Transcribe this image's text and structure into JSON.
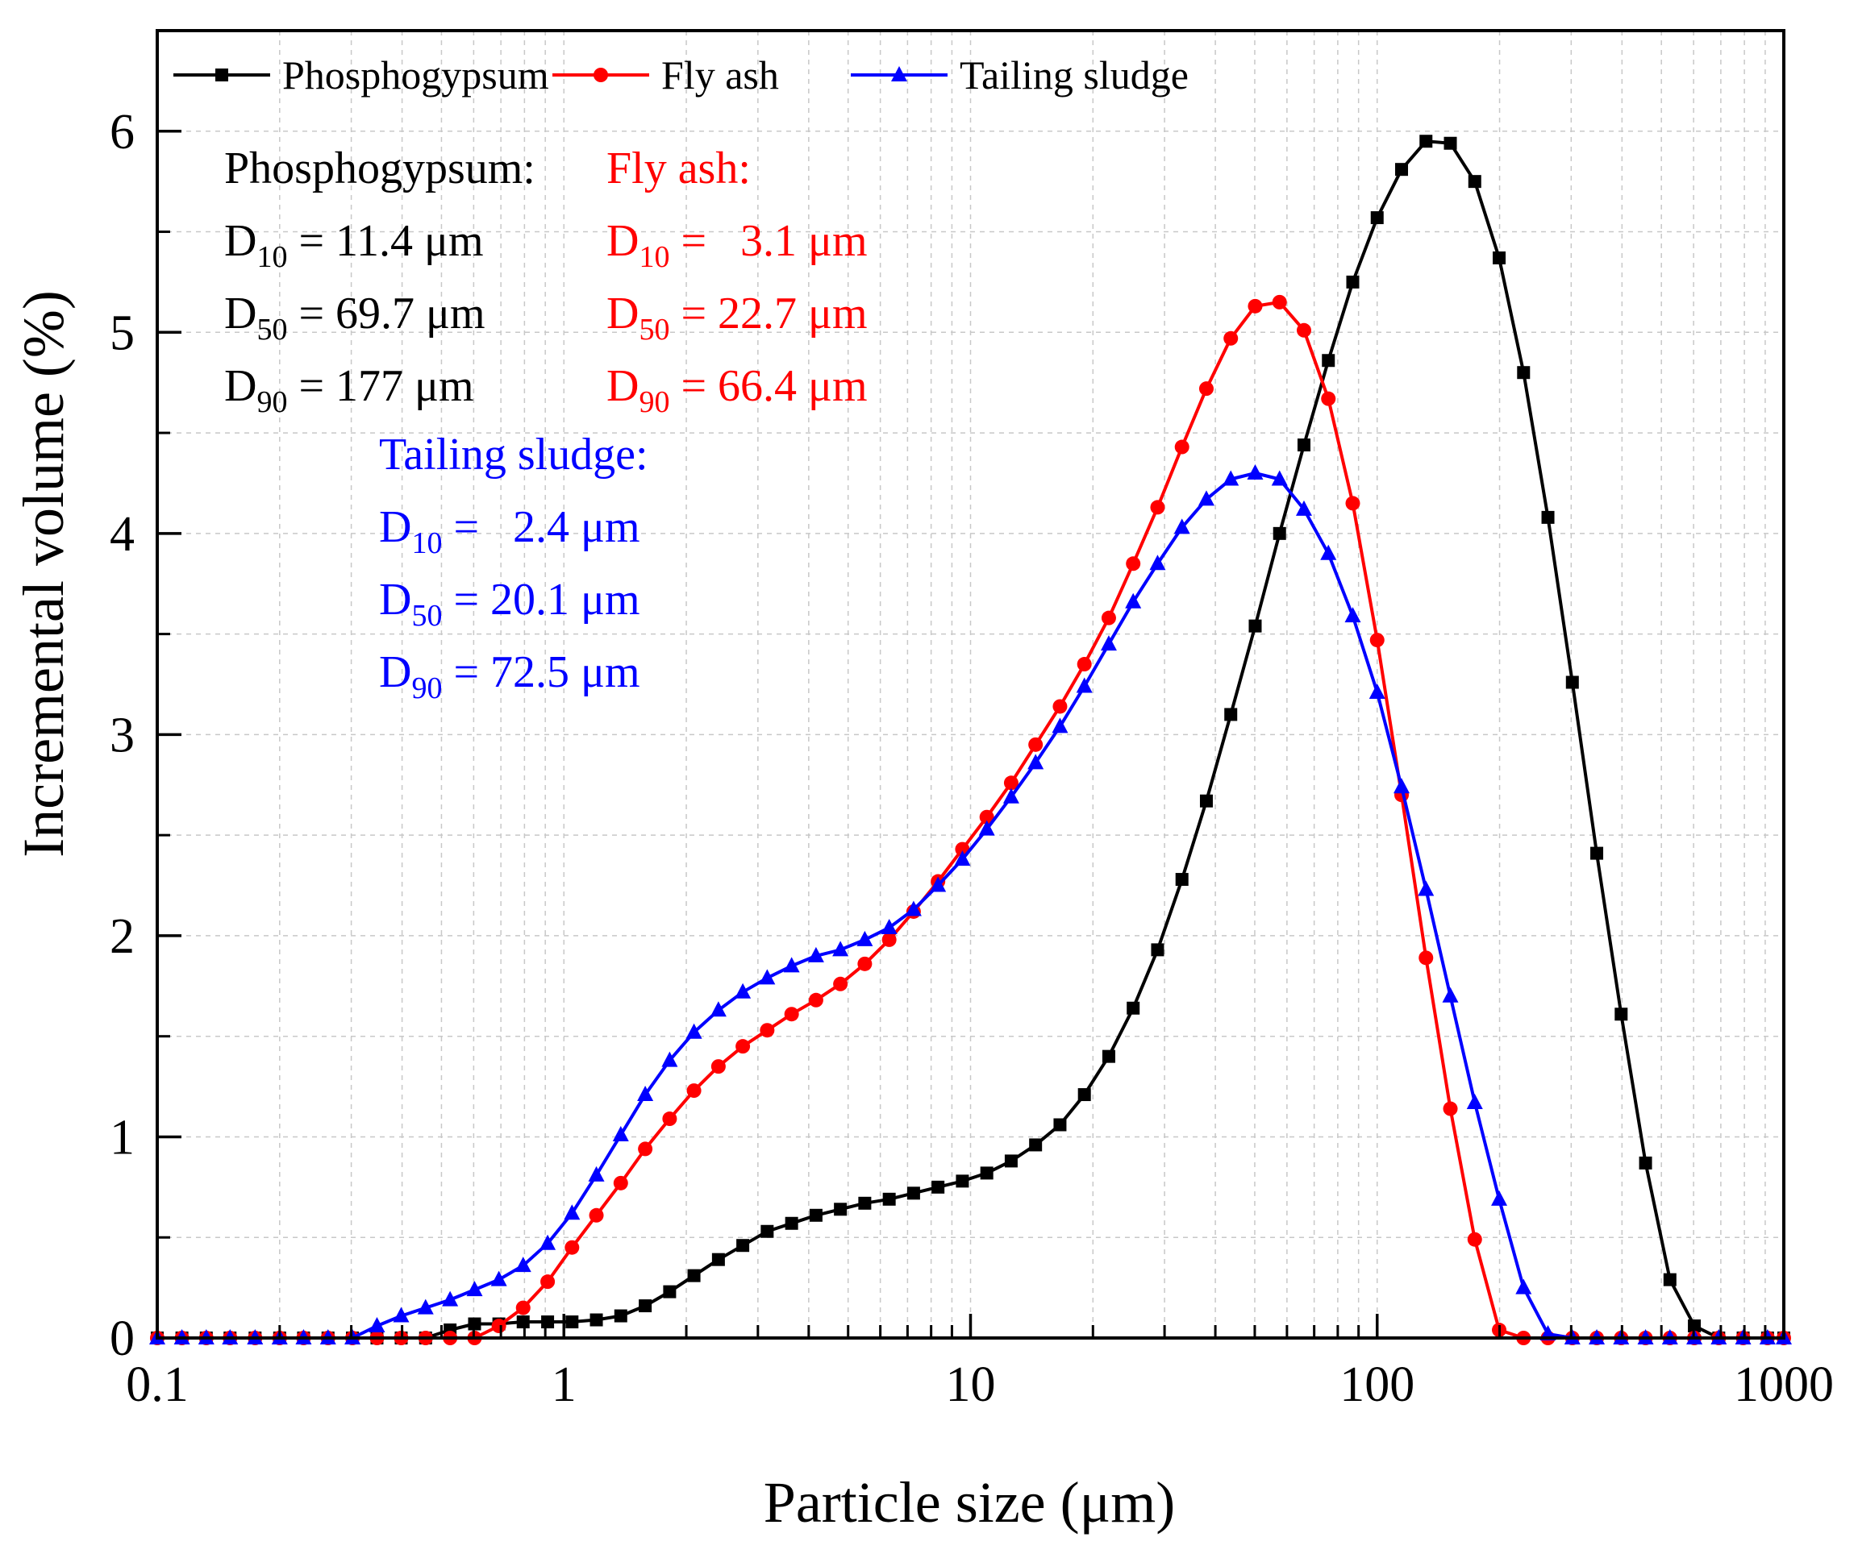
{
  "chart_data": {
    "type": "line",
    "xscale": "log",
    "xlabel": "Particle size (μm)",
    "ylabel": "Incremental volume (%)",
    "xlim": [
      0.1,
      1000
    ],
    "ylim": [
      0,
      6.5
    ],
    "xticks": [
      {
        "value": 0.1,
        "label": "0.1"
      },
      {
        "value": 1,
        "label": "1"
      },
      {
        "value": 10,
        "label": "10"
      },
      {
        "value": 100,
        "label": "100"
      },
      {
        "value": 1000,
        "label": "1000"
      }
    ],
    "yticks": [
      {
        "value": 0,
        "label": "0"
      },
      {
        "value": 1,
        "label": "1"
      },
      {
        "value": 2,
        "label": "2"
      },
      {
        "value": 3,
        "label": "3"
      },
      {
        "value": 4,
        "label": "4"
      },
      {
        "value": 5,
        "label": "5"
      },
      {
        "value": 6,
        "label": "6"
      }
    ],
    "grid": true,
    "legend_position": "top-left",
    "x": [
      0.1,
      0.115,
      0.132,
      0.151,
      0.174,
      0.2,
      0.229,
      0.263,
      0.302,
      0.347,
      0.398,
      0.457,
      0.525,
      0.603,
      0.692,
      0.794,
      0.912,
      1.047,
      1.202,
      1.38,
      1.585,
      1.82,
      2.089,
      2.399,
      2.754,
      3.162,
      3.631,
      4.169,
      4.786,
      5.495,
      6.31,
      7.244,
      8.318,
      9.55,
      10.965,
      12.589,
      14.454,
      16.596,
      19.055,
      21.878,
      25.119,
      28.84,
      33.113,
      38.019,
      43.652,
      50.119,
      57.544,
      66.069,
      75.858,
      87.096,
      100,
      114.82,
      131.83,
      151.36,
      173.78,
      199.53,
      229.09,
      263.03,
      302,
      346.74,
      398.11,
      457.09,
      524.81,
      602.56,
      691.83,
      794.33,
      912.01,
      1000
    ],
    "series": [
      {
        "name": "Phosphogypsum",
        "color": "#000000",
        "marker": "square",
        "values": [
          0,
          0,
          0,
          0,
          0,
          0,
          0,
          0,
          0,
          0,
          0,
          0,
          0.04,
          0.07,
          0.07,
          0.08,
          0.08,
          0.08,
          0.09,
          0.11,
          0.16,
          0.23,
          0.31,
          0.39,
          0.46,
          0.53,
          0.57,
          0.61,
          0.64,
          0.67,
          0.69,
          0.72,
          0.75,
          0.78,
          0.82,
          0.88,
          0.96,
          1.06,
          1.21,
          1.4,
          1.64,
          1.93,
          2.28,
          2.67,
          3.1,
          3.54,
          4,
          4.44,
          4.86,
          5.25,
          5.57,
          5.81,
          5.95,
          5.94,
          5.75,
          5.37,
          4.8,
          4.08,
          3.26,
          2.41,
          1.61,
          0.87,
          0.29,
          0.06,
          0,
          0,
          0,
          0
        ]
      },
      {
        "name": "Fly ash",
        "color": "#ff0000",
        "marker": "circle",
        "values": [
          0,
          0,
          0,
          0,
          0,
          0,
          0,
          0,
          0,
          0,
          0,
          0,
          0,
          0,
          0.06,
          0.15,
          0.28,
          0.45,
          0.61,
          0.77,
          0.94,
          1.09,
          1.23,
          1.35,
          1.45,
          1.53,
          1.61,
          1.68,
          1.76,
          1.86,
          1.98,
          2.12,
          2.27,
          2.43,
          2.59,
          2.76,
          2.95,
          3.14,
          3.35,
          3.58,
          3.85,
          4.13,
          4.43,
          4.72,
          4.97,
          5.13,
          5.15,
          5.01,
          4.67,
          4.15,
          3.47,
          2.7,
          1.89,
          1.14,
          0.49,
          0.04,
          0,
          0,
          0,
          0,
          0,
          0,
          0,
          0,
          0,
          0,
          0,
          0
        ]
      },
      {
        "name": "Tailing sludge",
        "color": "#0000ff",
        "marker": "triangle",
        "values": [
          0,
          0,
          0,
          0,
          0,
          0,
          0,
          0,
          0,
          0.06,
          0.11,
          0.15,
          0.19,
          0.24,
          0.29,
          0.36,
          0.47,
          0.62,
          0.81,
          1.01,
          1.21,
          1.38,
          1.52,
          1.63,
          1.72,
          1.79,
          1.85,
          1.9,
          1.93,
          1.98,
          2.04,
          2.13,
          2.25,
          2.38,
          2.53,
          2.69,
          2.86,
          3.04,
          3.24,
          3.45,
          3.66,
          3.85,
          4.03,
          4.17,
          4.27,
          4.3,
          4.27,
          4.12,
          3.9,
          3.59,
          3.21,
          2.74,
          2.23,
          1.7,
          1.17,
          0.69,
          0.25,
          0.02,
          0,
          0,
          0,
          0,
          0,
          0,
          0,
          0,
          0,
          0
        ]
      }
    ],
    "annotations": [
      {
        "color": "#000000",
        "title": "Phosphogypsum:",
        "lines": [
          {
            "main": "D",
            "sub": "10",
            "rest": " = 11.4 μm"
          },
          {
            "main": "D",
            "sub": "50",
            "rest": " = 69.7 μm"
          },
          {
            "main": "D",
            "sub": "90",
            "rest": " = 177 μm"
          }
        ]
      },
      {
        "color": "#ff0000",
        "title": "Fly ash:",
        "lines": [
          {
            "main": "D",
            "sub": "10",
            "rest": " =   3.1 μm"
          },
          {
            "main": "D",
            "sub": "50",
            "rest": " = 22.7 μm"
          },
          {
            "main": "D",
            "sub": "90",
            "rest": " = 66.4 μm"
          }
        ]
      },
      {
        "color": "#0000ff",
        "title": "Tailing sludge:",
        "lines": [
          {
            "main": "D",
            "sub": "10",
            "rest": " =   2.4 μm"
          },
          {
            "main": "D",
            "sub": "50",
            "rest": " = 20.1 μm"
          },
          {
            "main": "D",
            "sub": "90",
            "rest": " = 72.5 μm"
          }
        ]
      }
    ]
  }
}
